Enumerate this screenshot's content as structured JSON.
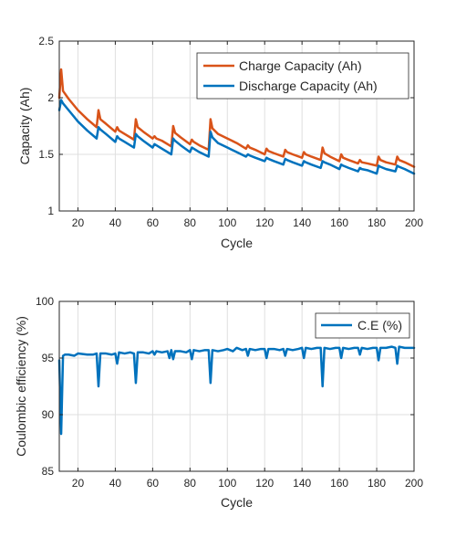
{
  "colors": {
    "charge": "#D95319",
    "discharge": "#0072BD",
    "ce": "#0072BD",
    "grid": "#DFDFDF",
    "axis": "#262626"
  },
  "chart_data": [
    {
      "type": "line",
      "title": "",
      "xlabel": "Cycle",
      "ylabel": "Capacity (Ah)",
      "xlim": [
        10,
        200
      ],
      "ylim": [
        1,
        2.5
      ],
      "grid": true,
      "legend_position": "top-right",
      "xticks": [
        20,
        40,
        60,
        80,
        100,
        120,
        140,
        160,
        180,
        200
      ],
      "yticks": [
        1,
        1.5,
        2,
        2.5
      ],
      "xtick_labels": [
        "20",
        "40",
        "60",
        "80",
        "100",
        "120",
        "140",
        "160",
        "180",
        "200"
      ],
      "ytick_labels": [
        "1",
        "1.5",
        "2",
        "2.5"
      ],
      "series": [
        {
          "name": "Charge Capacity (Ah)",
          "x": [
            10,
            11,
            12,
            15,
            20,
            25,
            30,
            31,
            32,
            35,
            40,
            41,
            42,
            45,
            50,
            51,
            52,
            55,
            60,
            61,
            62,
            65,
            70,
            71,
            72,
            75,
            80,
            81,
            82,
            85,
            90,
            91,
            92,
            95,
            100,
            105,
            110,
            111,
            112,
            115,
            120,
            121,
            122,
            125,
            130,
            131,
            132,
            135,
            140,
            141,
            142,
            145,
            150,
            151,
            152,
            155,
            160,
            161,
            162,
            165,
            170,
            171,
            172,
            175,
            180,
            181,
            182,
            185,
            190,
            191,
            192,
            195,
            200
          ],
          "y": [
            2.0,
            2.25,
            2.06,
            1.99,
            1.89,
            1.81,
            1.74,
            1.89,
            1.81,
            1.77,
            1.7,
            1.74,
            1.71,
            1.68,
            1.63,
            1.81,
            1.74,
            1.7,
            1.64,
            1.66,
            1.64,
            1.62,
            1.57,
            1.75,
            1.69,
            1.65,
            1.59,
            1.63,
            1.61,
            1.58,
            1.54,
            1.81,
            1.73,
            1.68,
            1.64,
            1.6,
            1.55,
            1.58,
            1.56,
            1.54,
            1.5,
            1.55,
            1.53,
            1.51,
            1.48,
            1.54,
            1.52,
            1.5,
            1.47,
            1.52,
            1.5,
            1.48,
            1.45,
            1.56,
            1.51,
            1.48,
            1.44,
            1.5,
            1.47,
            1.45,
            1.42,
            1.45,
            1.43,
            1.42,
            1.4,
            1.48,
            1.45,
            1.43,
            1.41,
            1.48,
            1.45,
            1.43,
            1.39
          ]
        },
        {
          "name": "Discharge Capacity (Ah)",
          "x": [
            10,
            11,
            12,
            15,
            20,
            25,
            30,
            31,
            32,
            35,
            40,
            41,
            42,
            45,
            50,
            51,
            52,
            55,
            60,
            61,
            62,
            65,
            70,
            71,
            72,
            75,
            80,
            81,
            82,
            85,
            90,
            91,
            92,
            95,
            100,
            105,
            110,
            111,
            112,
            115,
            120,
            121,
            122,
            125,
            130,
            131,
            132,
            135,
            140,
            141,
            142,
            145,
            150,
            151,
            152,
            155,
            160,
            161,
            162,
            165,
            170,
            171,
            172,
            175,
            180,
            181,
            182,
            185,
            190,
            191,
            192,
            195,
            200
          ],
          "y": [
            1.89,
            1.98,
            1.95,
            1.89,
            1.79,
            1.71,
            1.64,
            1.74,
            1.72,
            1.68,
            1.61,
            1.66,
            1.64,
            1.61,
            1.56,
            1.68,
            1.66,
            1.62,
            1.56,
            1.59,
            1.58,
            1.55,
            1.5,
            1.64,
            1.62,
            1.58,
            1.52,
            1.56,
            1.55,
            1.52,
            1.48,
            1.7,
            1.65,
            1.6,
            1.56,
            1.52,
            1.48,
            1.5,
            1.49,
            1.47,
            1.44,
            1.47,
            1.46,
            1.44,
            1.41,
            1.46,
            1.45,
            1.43,
            1.4,
            1.44,
            1.43,
            1.41,
            1.38,
            1.44,
            1.43,
            1.41,
            1.37,
            1.41,
            1.4,
            1.38,
            1.35,
            1.38,
            1.37,
            1.36,
            1.33,
            1.4,
            1.39,
            1.37,
            1.35,
            1.4,
            1.39,
            1.37,
            1.33
          ]
        }
      ]
    },
    {
      "type": "line",
      "title": "",
      "xlabel": "Cycle",
      "ylabel": "Coulombic efficiency (%)",
      "xlim": [
        10,
        200
      ],
      "ylim": [
        85,
        100
      ],
      "grid": true,
      "legend_position": "top-right",
      "xticks": [
        20,
        40,
        60,
        80,
        100,
        120,
        140,
        160,
        180,
        200
      ],
      "yticks": [
        85,
        90,
        95,
        100
      ],
      "xtick_labels": [
        "20",
        "40",
        "60",
        "80",
        "100",
        "120",
        "140",
        "160",
        "180",
        "200"
      ],
      "ytick_labels": [
        "85",
        "90",
        "95",
        "100"
      ],
      "series": [
        {
          "name": "C.E (%)",
          "x": [
            10,
            11,
            12,
            13,
            15,
            18,
            20,
            25,
            28,
            30,
            31,
            32,
            35,
            38,
            40,
            41,
            42,
            45,
            48,
            50,
            51,
            52,
            55,
            58,
            60,
            61,
            62,
            65,
            68,
            69,
            70,
            71,
            72,
            75,
            78,
            80,
            81,
            82,
            85,
            88,
            90,
            91,
            92,
            95,
            98,
            100,
            103,
            105,
            108,
            110,
            111,
            112,
            115,
            118,
            120,
            121,
            122,
            125,
            128,
            130,
            131,
            132,
            135,
            138,
            140,
            141,
            142,
            145,
            148,
            150,
            151,
            152,
            155,
            158,
            160,
            161,
            162,
            165,
            168,
            170,
            171,
            172,
            175,
            178,
            180,
            181,
            182,
            185,
            188,
            190,
            191,
            192,
            195,
            198,
            200
          ],
          "y": [
            94.8,
            88.3,
            95.2,
            95.3,
            95.3,
            95.2,
            95.4,
            95.3,
            95.3,
            95.4,
            92.5,
            95.4,
            95.4,
            95.3,
            95.4,
            94.5,
            95.5,
            95.4,
            95.5,
            95.4,
            92.8,
            95.5,
            95.5,
            95.4,
            95.6,
            95.3,
            95.6,
            95.5,
            95.6,
            95.0,
            95.7,
            94.9,
            95.6,
            95.6,
            95.5,
            95.7,
            94.9,
            95.7,
            95.6,
            95.7,
            95.7,
            92.8,
            95.7,
            95.6,
            95.7,
            95.8,
            95.6,
            95.9,
            95.7,
            95.8,
            95.2,
            95.8,
            95.7,
            95.8,
            95.8,
            95.0,
            95.8,
            95.8,
            95.7,
            95.8,
            95.2,
            95.8,
            95.7,
            95.8,
            95.9,
            95.0,
            95.9,
            95.8,
            95.9,
            95.9,
            92.5,
            95.9,
            95.8,
            95.9,
            95.9,
            95.0,
            95.9,
            95.8,
            95.9,
            95.9,
            95.3,
            95.9,
            95.8,
            95.9,
            95.9,
            94.8,
            95.9,
            95.9,
            96.0,
            95.9,
            94.5,
            96.0,
            95.9,
            95.9,
            95.9
          ]
        }
      ]
    }
  ]
}
